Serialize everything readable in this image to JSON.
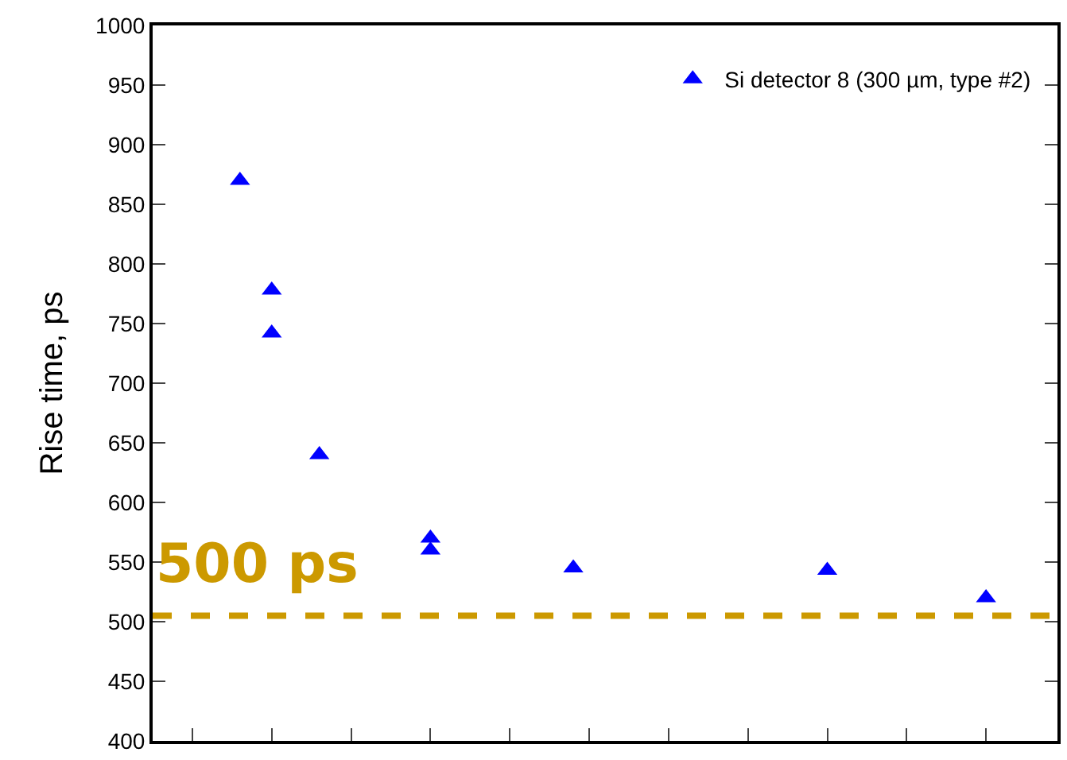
{
  "chart_data": {
    "type": "scatter",
    "ylabel": "Rise time, ps",
    "categories": [
      null,
      null,
      null,
      null,
      null,
      null,
      null,
      null,
      null,
      null,
      null,
      null,
      null,
      null,
      null,
      null,
      null,
      null,
      null,
      null,
      null,
      null,
      null,
      null,
      null,
      null,
      null,
      null,
      null,
      null,
      null,
      null,
      null,
      null,
      null,
      null,
      null,
      null,
      null,
      null,
      null,
      null,
      null,
      null,
      null,
      null,
      null,
      null,
      null,
      null,
      null,
      null,
      null,
      null,
      null,
      null,
      null
    ],
    "series": [
      {
        "name": "Si detector 8 (300 µm, type #2)",
        "color": "#0000ff",
        "values": [
          null,
          null,
          null,
          null,
          null,
          870,
          null,
          778,
          null,
          null,
          640,
          null,
          null,
          null,
          null,
          null,
          null,
          570,
          null,
          null,
          null,
          null,
          null,
          null,
          null,
          null,
          545,
          null,
          null,
          null,
          null,
          null,
          null,
          null,
          null,
          null,
          null,
          null,
          null,
          null,
          null,
          null,
          543,
          null,
          null,
          null,
          null,
          null,
          null,
          null,
          null,
          null,
          520,
          null,
          null,
          null,
          null
        ]
      },
      {
        "color": "#0000ff",
        "values": [
          null,
          null,
          null,
          null,
          null,
          null,
          null,
          742,
          null,
          null,
          null,
          null,
          null,
          null,
          null,
          null,
          null,
          560,
          null,
          null,
          null,
          null,
          null,
          null,
          null,
          null,
          null,
          null,
          null,
          null,
          null,
          null,
          null,
          null,
          null,
          null,
          null,
          null,
          null,
          null,
          null,
          null,
          null,
          null,
          null,
          null,
          null,
          null,
          null,
          null,
          null,
          null,
          null,
          null,
          null,
          null,
          null
        ]
      }
    ],
    "ylim": [
      400,
      1000
    ],
    "yticks": [
      400,
      450,
      500,
      550,
      600,
      650,
      700,
      750,
      800,
      850,
      900,
      950,
      1000
    ],
    "ref_lines": [
      {
        "axis": "y",
        "value": 505,
        "label": "500 ps",
        "color": "#cc9900",
        "line_style": "dashed"
      }
    ],
    "marker": "triangle",
    "legend": "top right",
    "tick_labels": "y"
  }
}
